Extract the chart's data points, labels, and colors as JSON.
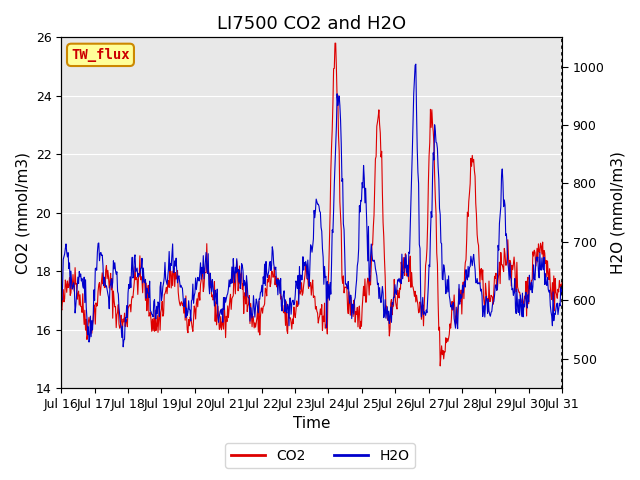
{
  "title": "LI7500 CO2 and H2O",
  "xlabel": "Time",
  "ylabel_left": "CO2 (mmol/m3)",
  "ylabel_right": "H2O (mmol/m3)",
  "ylim_left": [
    14,
    26
  ],
  "ylim_right": [
    450,
    1050
  ],
  "text_box_label": "TW_flux",
  "legend_labels": [
    "CO2",
    "H2O"
  ],
  "co2_color": "#DD0000",
  "h2o_color": "#0000CC",
  "background_color": "#E8E8E8",
  "title_fontsize": 13,
  "axis_label_fontsize": 11,
  "tick_label_fontsize": 9,
  "x_tick_labels": [
    "Jul 16",
    "Jul 17",
    "Jul 18",
    "Jul 19",
    "Jul 20",
    "Jul 21",
    "Jul 22",
    "Jul 23",
    "Jul 24",
    "Jul 25",
    "Jul 26",
    "Jul 27",
    "Jul 28",
    "Jul 29",
    "Jul 30",
    "Jul 31"
  ],
  "x_tick_positions": [
    0,
    1,
    2,
    3,
    4,
    5,
    6,
    7,
    8,
    9,
    10,
    11,
    12,
    13,
    14,
    15
  ],
  "n_points_per_day": 48,
  "n_days": 15
}
